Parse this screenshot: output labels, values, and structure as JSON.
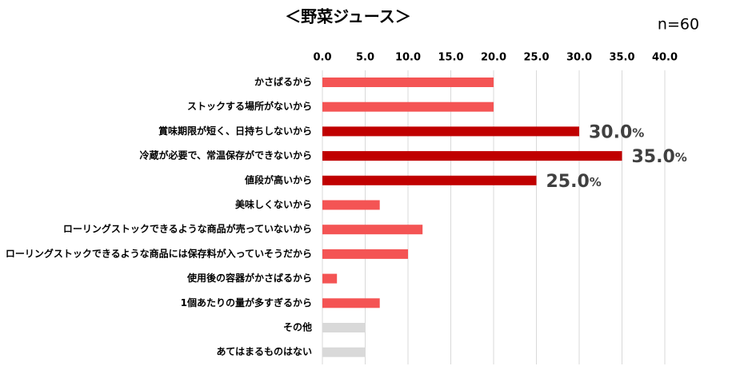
{
  "chart_data": {
    "type": "bar",
    "orientation": "horizontal",
    "title": "＜野菜ジュース＞",
    "annotation": "n=60",
    "categories": [
      "かさばるから",
      "ストックする場所がないから",
      "賞味期限が短く、日持ちしないから",
      "冷蔵が必要で、常温保存ができないから",
      "値段が高いから",
      "美味しくないから",
      "ローリングストックできるような商品が売っていないから",
      "ローリングストックできるような商品には保存料が入っていそうだから",
      "使用後の容器がかさばるから",
      "1個あたりの量が多すぎるから",
      "その他",
      "あてはまるものはない"
    ],
    "values": [
      20.0,
      20.0,
      30.0,
      35.0,
      25.0,
      6.7,
      11.7,
      10.0,
      1.7,
      6.7,
      5.0,
      5.0
    ],
    "value_labels": [
      null,
      null,
      "30.0%",
      "35.0%",
      "25.0%",
      null,
      null,
      null,
      null,
      null,
      null,
      null
    ],
    "colors": [
      "#f45454",
      "#f45454",
      "#c00000",
      "#c00000",
      "#c00000",
      "#f45454",
      "#f45454",
      "#f45454",
      "#f45454",
      "#f45454",
      "#d9d9d9",
      "#d9d9d9"
    ],
    "xlim": [
      0,
      40
    ],
    "xticks": [
      {
        "value": 0,
        "label": "0.0"
      },
      {
        "value": 5,
        "label": "5.0"
      },
      {
        "value": 10,
        "label": "10.0"
      },
      {
        "value": 15,
        "label": "15.0"
      },
      {
        "value": 20,
        "label": "20.0"
      },
      {
        "value": 25,
        "label": "25.0"
      },
      {
        "value": 30,
        "label": "30.0"
      },
      {
        "value": 35,
        "label": "35.0"
      },
      {
        "value": 40,
        "label": "40.0"
      }
    ],
    "grid": true
  }
}
